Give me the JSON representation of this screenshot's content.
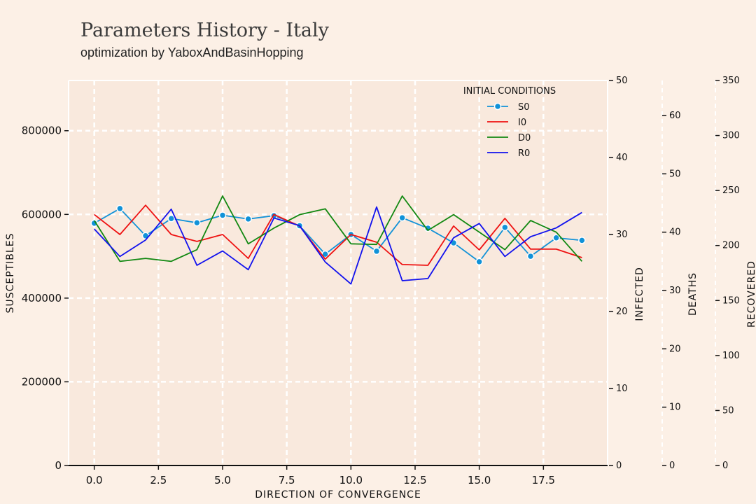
{
  "title": "Parameters History - Italy",
  "subtitle": "optimization by YaboxAndBasinHopping",
  "chart_data": {
    "type": "line",
    "xlabel": "DIRECTION OF CONVERGENCE",
    "xlim": [
      -1,
      20
    ],
    "x_ticks": [
      "0.0",
      "2.5",
      "5.0",
      "7.5",
      "10.0",
      "12.5",
      "15.0",
      "17.5"
    ],
    "x": [
      0,
      1,
      2,
      3,
      4,
      5,
      6,
      7,
      8,
      9,
      10,
      11,
      12,
      13,
      14,
      15,
      16,
      17,
      18,
      19
    ],
    "grid": true,
    "legend": {
      "title": "INITIAL CONDITIONS",
      "placement": "top-right"
    },
    "axes": [
      {
        "id": "S",
        "label": "SUSCEPTIBLES",
        "side": "left",
        "ylim": [
          0,
          920000
        ],
        "ticks": [
          "0",
          "200000",
          "400000",
          "600000",
          "800000"
        ]
      },
      {
        "id": "I",
        "label": "INFECTED",
        "side": "right",
        "ylim": [
          0,
          50
        ],
        "ticks": [
          "0",
          "10",
          "20",
          "30",
          "40",
          "50"
        ]
      },
      {
        "id": "D",
        "label": "DEATHS",
        "side": "right",
        "ylim": [
          0,
          66
        ],
        "ticks": [
          "0",
          "10",
          "20",
          "30",
          "40",
          "50",
          "60"
        ]
      },
      {
        "id": "R",
        "label": "RECOVERED",
        "side": "right",
        "ylim": [
          0,
          350
        ],
        "ticks": [
          "0",
          "50",
          "100",
          "150",
          "200",
          "250",
          "300",
          "350"
        ]
      }
    ],
    "series": [
      {
        "name": "S0",
        "axis": "S",
        "color": "#1192d8",
        "marker": true,
        "values": [
          579000,
          614000,
          549000,
          590000,
          580000,
          598000,
          589000,
          597000,
          573000,
          505000,
          552000,
          512000,
          592000,
          567000,
          532000,
          487000,
          569000,
          500000,
          544000,
          538000
        ]
      },
      {
        "name": "I0",
        "axis": "I",
        "color": "#ee1111",
        "values": [
          32.6,
          30.0,
          33.8,
          30.0,
          29.1,
          30.0,
          26.9,
          32.6,
          31.1,
          26.8,
          30.0,
          29.0,
          26.1,
          26.0,
          31.1,
          28.0,
          32.1,
          28.1,
          28.1,
          27.0
        ]
      },
      {
        "name": "D0",
        "axis": "D",
        "color": "#118811",
        "values": [
          42.0,
          35.0,
          35.5,
          35.0,
          37.0,
          46.2,
          38.0,
          40.7,
          43.0,
          44.0,
          38.0,
          37.9,
          46.2,
          40.3,
          43.0,
          40.0,
          37.0,
          42.0,
          40.0,
          35.0
        ]
      },
      {
        "name": "R0",
        "axis": "R",
        "color": "#1111ee",
        "values": [
          215,
          190,
          205,
          233,
          182,
          195,
          178,
          225,
          218,
          185,
          165,
          235,
          168,
          170,
          207,
          220,
          190,
          208,
          216,
          230
        ]
      }
    ]
  }
}
